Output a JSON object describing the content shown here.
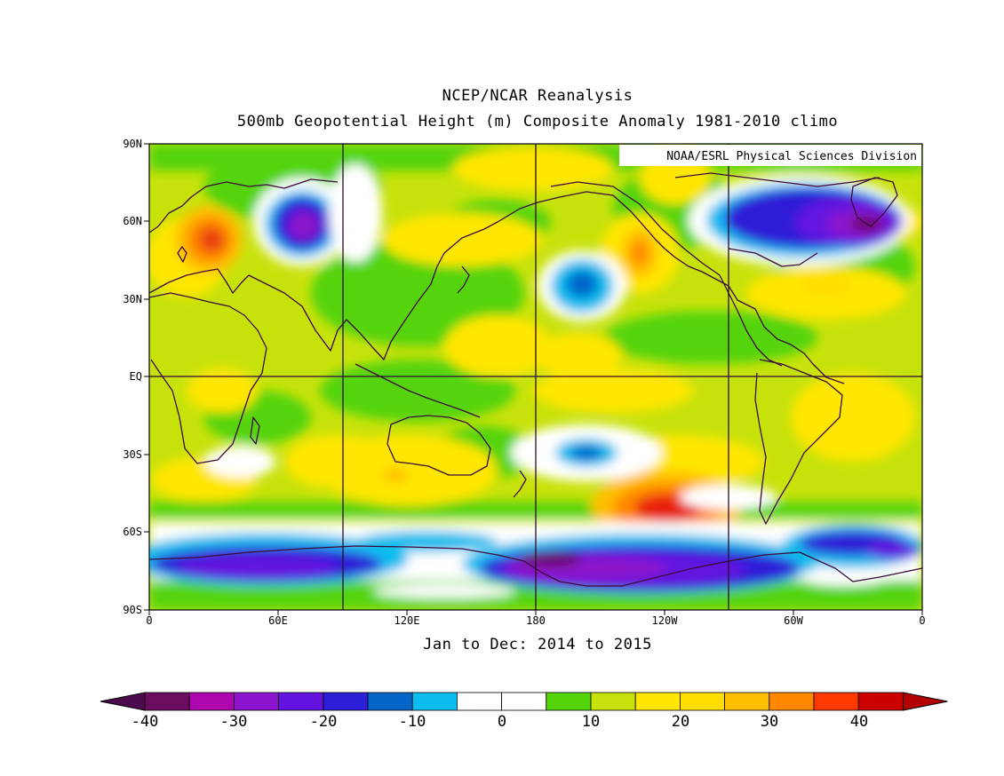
{
  "header": {
    "title_line1": "NCEP/NCAR Reanalysis",
    "title_line2": "500mb Geopotential Height (m) Composite Anomaly 1981-2010 climo"
  },
  "map": {
    "credit": "NOAA/ESRL Physical Sciences Division",
    "period_label": "Jan to Dec: 2014 to 2015",
    "lat_labels": [
      "90N",
      "60N",
      "30N",
      "EQ",
      "30S",
      "60S",
      "90S"
    ],
    "lon_labels": [
      "0",
      "60E",
      "120E",
      "180",
      "120W",
      "60W",
      "0"
    ],
    "colors": {
      "ocean_base": "#c7e20b",
      "coastline": "#3b0a3b",
      "gridline": "#2b0a2b"
    }
  },
  "colorbar": {
    "tick_labels": [
      "-40",
      "-30",
      "-20",
      "-10",
      "0",
      "10",
      "20",
      "30",
      "40"
    ],
    "colors": [
      "#6b0d5e",
      "#ad08ad",
      "#8c14cc",
      "#6414e0",
      "#2d1ed7",
      "#0565c8",
      "#0bbdee",
      "#ffffff",
      "#ffffff",
      "#55d40a",
      "#c7e20b",
      "#ffe600",
      "#ffde00",
      "#ffbf00",
      "#ff8800",
      "#ff3a00",
      "#cc0000"
    ],
    "under_color": "#4b0a4b",
    "over_color": "#b30000"
  }
}
